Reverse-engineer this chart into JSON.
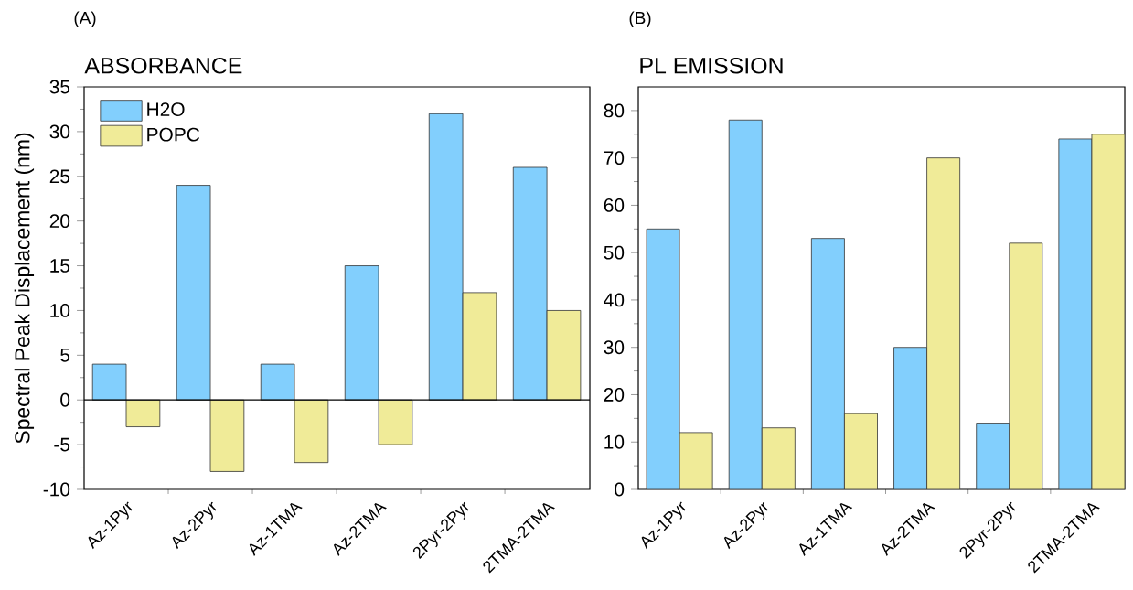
{
  "chart_data": [
    {
      "type": "bar",
      "title": "ABSORBANCE",
      "ylabel": "Spectral Peak Displacement (nm)",
      "annotations": [
        "(A)"
      ],
      "categories": [
        "Az-1Pyr",
        "Az-2Pyr",
        "Az-1TMA",
        "Az-2TMA",
        "2Pyr-2Pyr",
        "2TMA-2TMA"
      ],
      "series": [
        {
          "name": "H2O",
          "color": "#82cffd",
          "values": [
            4,
            24,
            4,
            15,
            32,
            26
          ]
        },
        {
          "name": "POPC",
          "color": "#f0eb98",
          "values": [
            -3,
            -8,
            -7,
            -5,
            12,
            10
          ]
        }
      ],
      "ylim": [
        -10,
        35
      ],
      "yticks": [
        -10,
        -5,
        0,
        5,
        10,
        15,
        20,
        25,
        30,
        35
      ],
      "ref_lines": [
        {
          "axis": "y",
          "value": 0,
          "color": "#000000"
        }
      ],
      "legend": "top left",
      "grid": false
    },
    {
      "type": "bar",
      "title": "PL EMISSION",
      "annotations": [
        "(B)"
      ],
      "categories": [
        "Az-1Pyr",
        "Az-2Pyr",
        "Az-1TMA",
        "Az-2TMA",
        "2Pyr-2Pyr",
        "2TMA-2TMA"
      ],
      "series": [
        {
          "color": "#82cffd",
          "values": [
            55,
            78,
            53,
            30,
            14,
            74
          ]
        },
        {
          "color": "#f0eb98",
          "values": [
            12,
            13,
            16,
            70,
            52,
            75
          ]
        }
      ],
      "ylim": [
        0,
        85
      ],
      "yticks": [
        0,
        10,
        20,
        30,
        40,
        50,
        60,
        70,
        80
      ],
      "legend": false,
      "grid": false
    }
  ]
}
